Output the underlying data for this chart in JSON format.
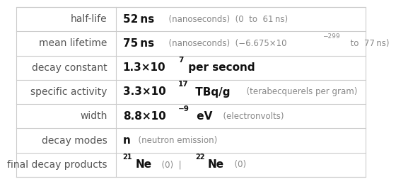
{
  "rows": [
    {
      "label": "half-life",
      "value_parts": [
        {
          "text": "52 ns",
          "style": "bold",
          "size": 11
        },
        {
          "text": "  (nanoseconds)  (0  to  61 ns)",
          "style": "normal_gray",
          "size": 8.5
        }
      ]
    },
    {
      "label": "mean lifetime",
      "value_parts": [
        {
          "text": "75 ns",
          "style": "bold",
          "size": 11
        },
        {
          "text": "  (nanoseconds)  (−6.675×10",
          "style": "normal_gray",
          "size": 8.5
        },
        {
          "text": "−299",
          "style": "superscript_gray",
          "size": 6.5
        },
        {
          "text": "  to  77 ns)",
          "style": "normal_gray",
          "size": 8.5
        }
      ]
    },
    {
      "label": "decay constant",
      "value_parts": [
        {
          "text": "1.3×10",
          "style": "bold",
          "size": 11
        },
        {
          "text": "7",
          "style": "superscript_bold",
          "size": 7.5
        },
        {
          "text": " per second",
          "style": "bold",
          "size": 11
        }
      ]
    },
    {
      "label": "specific activity",
      "value_parts": [
        {
          "text": "3.3×10",
          "style": "bold",
          "size": 11
        },
        {
          "text": "17",
          "style": "superscript_bold",
          "size": 7.5
        },
        {
          "text": " TBq/g",
          "style": "bold",
          "size": 11
        },
        {
          "text": "  (terabecquerels per gram)",
          "style": "normal_gray",
          "size": 8.5
        }
      ]
    },
    {
      "label": "width",
      "value_parts": [
        {
          "text": "8.8×10",
          "style": "bold",
          "size": 11
        },
        {
          "text": "−9",
          "style": "superscript_bold",
          "size": 7.5
        },
        {
          "text": " eV",
          "style": "bold",
          "size": 11
        },
        {
          "text": "  (electronvolts)",
          "style": "normal_gray",
          "size": 8.5
        }
      ]
    },
    {
      "label": "decay modes",
      "value_parts": [
        {
          "text": "n",
          "style": "bold",
          "size": 11
        },
        {
          "text": "  (neutron emission)",
          "style": "normal_gray",
          "size": 8.5
        }
      ]
    },
    {
      "label": "final decay products",
      "value_parts": [
        {
          "text": "21",
          "style": "superscript_bold_left",
          "size": 7
        },
        {
          "text": "Ne",
          "style": "bold",
          "size": 11
        },
        {
          "text": "  (0)  |  ",
          "style": "normal_gray",
          "size": 8.5
        },
        {
          "text": "22",
          "style": "superscript_bold_left",
          "size": 7
        },
        {
          "text": "Ne",
          "style": "bold",
          "size": 11
        },
        {
          "text": "  (0)",
          "style": "normal_gray",
          "size": 8.5
        }
      ]
    }
  ],
  "col_split": 0.285,
  "background_color": "#ffffff",
  "border_color": "#cccccc",
  "label_color": "#555555",
  "bold_color": "#111111",
  "gray_color": "#888888",
  "label_fontsize": 10
}
